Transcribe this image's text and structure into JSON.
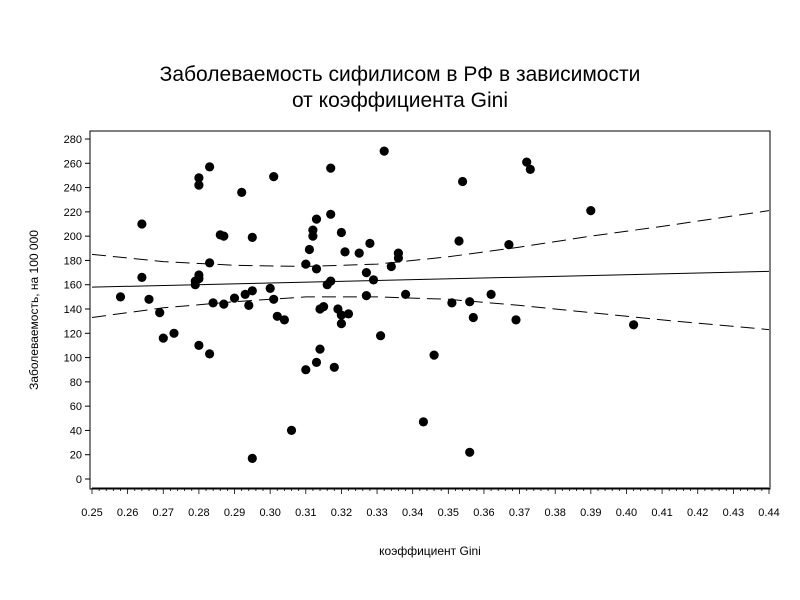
{
  "chart_data": {
    "type": "scatter",
    "title_lines": [
      "Заболеваемость сифилисом в РФ в зависимости",
      "от коэффициента Gini"
    ],
    "xlabel": "коэффициент Gini",
    "ylabel": "Заболеваемость, на 100 000",
    "xlim": [
      0.25,
      0.44
    ],
    "ylim": [
      0,
      280
    ],
    "x_ticks": [
      "0.25",
      "0.26",
      "0.27",
      "0.28",
      "0.29",
      "0.30",
      "0.31",
      "0.32",
      "0.33",
      "0.34",
      "0.35",
      "0.36",
      "0.37",
      "0.38",
      "0.39",
      "0.40",
      "0.41",
      "0.42",
      "0.43",
      "0.44"
    ],
    "y_ticks": [
      "0",
      "20",
      "40",
      "60",
      "80",
      "100",
      "120",
      "140",
      "160",
      "180",
      "200",
      "220",
      "240",
      "260",
      "280"
    ],
    "grid": false,
    "legend": "none",
    "point_color": "#000000",
    "points": [
      [
        0.258,
        150
      ],
      [
        0.264,
        210
      ],
      [
        0.264,
        166
      ],
      [
        0.266,
        148
      ],
      [
        0.269,
        137
      ],
      [
        0.27,
        116
      ],
      [
        0.273,
        120
      ],
      [
        0.279,
        160
      ],
      [
        0.279,
        163
      ],
      [
        0.28,
        165
      ],
      [
        0.28,
        168
      ],
      [
        0.28,
        242
      ],
      [
        0.28,
        248
      ],
      [
        0.28,
        110
      ],
      [
        0.283,
        257
      ],
      [
        0.283,
        178
      ],
      [
        0.283,
        103
      ],
      [
        0.284,
        145
      ],
      [
        0.286,
        201
      ],
      [
        0.287,
        144
      ],
      [
        0.287,
        200
      ],
      [
        0.29,
        149
      ],
      [
        0.292,
        236
      ],
      [
        0.293,
        152
      ],
      [
        0.294,
        143
      ],
      [
        0.295,
        17
      ],
      [
        0.295,
        199
      ],
      [
        0.295,
        155
      ],
      [
        0.3,
        157
      ],
      [
        0.301,
        249
      ],
      [
        0.301,
        148
      ],
      [
        0.302,
        134
      ],
      [
        0.304,
        131
      ],
      [
        0.306,
        40
      ],
      [
        0.31,
        177
      ],
      [
        0.31,
        90
      ],
      [
        0.311,
        189
      ],
      [
        0.312,
        205
      ],
      [
        0.312,
        200
      ],
      [
        0.313,
        214
      ],
      [
        0.313,
        173
      ],
      [
        0.313,
        96
      ],
      [
        0.314,
        140
      ],
      [
        0.314,
        107
      ],
      [
        0.315,
        142
      ],
      [
        0.316,
        160
      ],
      [
        0.317,
        256
      ],
      [
        0.317,
        218
      ],
      [
        0.317,
        163
      ],
      [
        0.318,
        92
      ],
      [
        0.319,
        140
      ],
      [
        0.32,
        203
      ],
      [
        0.32,
        135
      ],
      [
        0.32,
        128
      ],
      [
        0.321,
        187
      ],
      [
        0.322,
        136
      ],
      [
        0.325,
        186
      ],
      [
        0.327,
        170
      ],
      [
        0.327,
        151
      ],
      [
        0.328,
        194
      ],
      [
        0.329,
        164
      ],
      [
        0.331,
        118
      ],
      [
        0.332,
        270
      ],
      [
        0.334,
        175
      ],
      [
        0.336,
        186
      ],
      [
        0.336,
        182
      ],
      [
        0.338,
        152
      ],
      [
        0.343,
        47
      ],
      [
        0.346,
        102
      ],
      [
        0.351,
        145
      ],
      [
        0.353,
        196
      ],
      [
        0.354,
        245
      ],
      [
        0.356,
        146
      ],
      [
        0.356,
        22
      ],
      [
        0.357,
        133
      ],
      [
        0.362,
        152
      ],
      [
        0.367,
        193
      ],
      [
        0.369,
        131
      ],
      [
        0.372,
        261
      ],
      [
        0.373,
        255
      ],
      [
        0.39,
        221
      ],
      [
        0.402,
        127
      ]
    ],
    "fit_line": {
      "x": [
        0.25,
        0.44
      ],
      "y": [
        158,
        171
      ]
    },
    "confidence_band": {
      "x": [
        0.25,
        0.27,
        0.29,
        0.31,
        0.33,
        0.35,
        0.37,
        0.39,
        0.41,
        0.44
      ],
      "upper": [
        185,
        179,
        176,
        175,
        177,
        183,
        191,
        200,
        208,
        221
      ],
      "lower": [
        133,
        141,
        146,
        150,
        150,
        148,
        143,
        137,
        131,
        123
      ]
    }
  }
}
